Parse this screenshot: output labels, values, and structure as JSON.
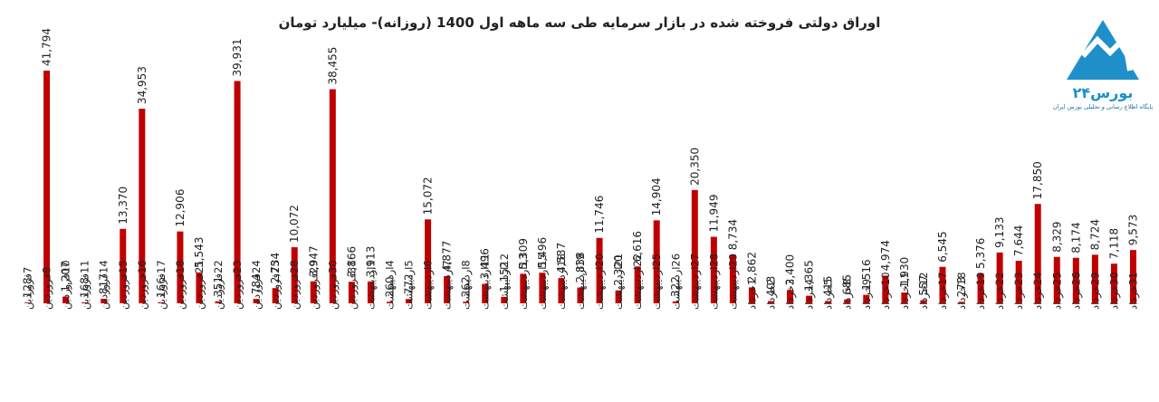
{
  "chart_data": {
    "type": "bar",
    "title": "اوراق دولتی فروخته شده در بازار سرمایه طی سه ماهه اول 1400 (روزانه)- میلیارد تومان",
    "categories": [
      "7فروردین",
      "8فروردین",
      "10فروردین",
      "11فروردین",
      "14فروردین",
      "15فروردین",
      "16فروردین",
      "17فروردین",
      "18فروردین",
      "21فروردین",
      "22فروردین",
      "23فروردین",
      "24فروردین",
      "25فروردین",
      "28فروردین",
      "29فروردین",
      "30فروردین",
      "31فروردین",
      "1اردیبهشت",
      "4اردیبهشت",
      "5اردیبهشت",
      "6اردیبهشت",
      "7اردیبهشت",
      "8اردیبهشت",
      "11اردیبهشت",
      "12اردیبهشت",
      "13اردیبهشت",
      "15اردیبهشت",
      "18اردیبهشت",
      "19اردیبهشت",
      "20اردیبهشت",
      "21اردیبهشت",
      "22اردیبهشت",
      "25اردیبهشت",
      "26اردیبهشت",
      "27اردیبهشت",
      "28اردیبهشت",
      "29اردیبهشت",
      "1خرداد",
      "2خرداد",
      "3خرداد",
      "4خرداد",
      "5خرداد",
      "8خرداد",
      "9خرداد",
      "10خرداد",
      "11خرداد",
      "12خرداد",
      "17خرداد",
      "18خرداد",
      "19خرداد",
      "22خرداد",
      "23خرداد",
      "24خرداد",
      "25خرداد",
      "26خرداد",
      "29خرداد",
      "30خرداد",
      "31خرداد"
    ],
    "values": [
      128,
      41794,
      1207,
      168,
      817,
      13370,
      34953,
      166,
      12906,
      5543,
      351,
      39931,
      784,
      2734,
      10072,
      3947,
      38455,
      3866,
      3913,
      260,
      772,
      15072,
      4877,
      262,
      3496,
      1152,
      5309,
      5496,
      4537,
      2838,
      11746,
      2320,
      6616,
      14904,
      322,
      20350,
      11949,
      8734,
      2862,
      403,
      2400,
      1365,
      415,
      685,
      1516,
      4974,
      1930,
      557,
      6545,
      273,
      5376,
      9133,
      7644,
      17850,
      8329,
      8174,
      8724,
      7118,
      9573
    ],
    "value_labels": [
      "128",
      "41,794",
      "1,207",
      "168",
      "817",
      "13,370",
      "34,953",
      "166",
      "12,906",
      "5,543",
      "351",
      "39,931",
      "784",
      "2,734",
      "10,072",
      "3,947",
      "38,455",
      "3,866",
      "3,913",
      "260",
      "772",
      "15,072",
      "4,877",
      "262",
      "3,496",
      "1,152",
      "5,309",
      "5,496",
      "4,537",
      "2,838",
      "11,746",
      "2,320",
      "6,616",
      "14,904",
      "322",
      "20,350",
      "11,949",
      "8,734",
      "2,862",
      "403",
      "2,400",
      "1,365",
      "415",
      "685",
      "1,516",
      "4,974",
      "1,930",
      "557",
      "6,545",
      "273",
      "5,376",
      "9,133",
      "7,644",
      "17,850",
      "8,329",
      "8,174",
      "8,724",
      "7,118",
      "9,573"
    ],
    "color": "#c00000",
    "ylim": [
      0,
      42000
    ]
  },
  "logo": {
    "name": "بورس۲۴",
    "tagline": "پایگاه اطلاع رسانی و تحلیلی بورس ایران"
  }
}
